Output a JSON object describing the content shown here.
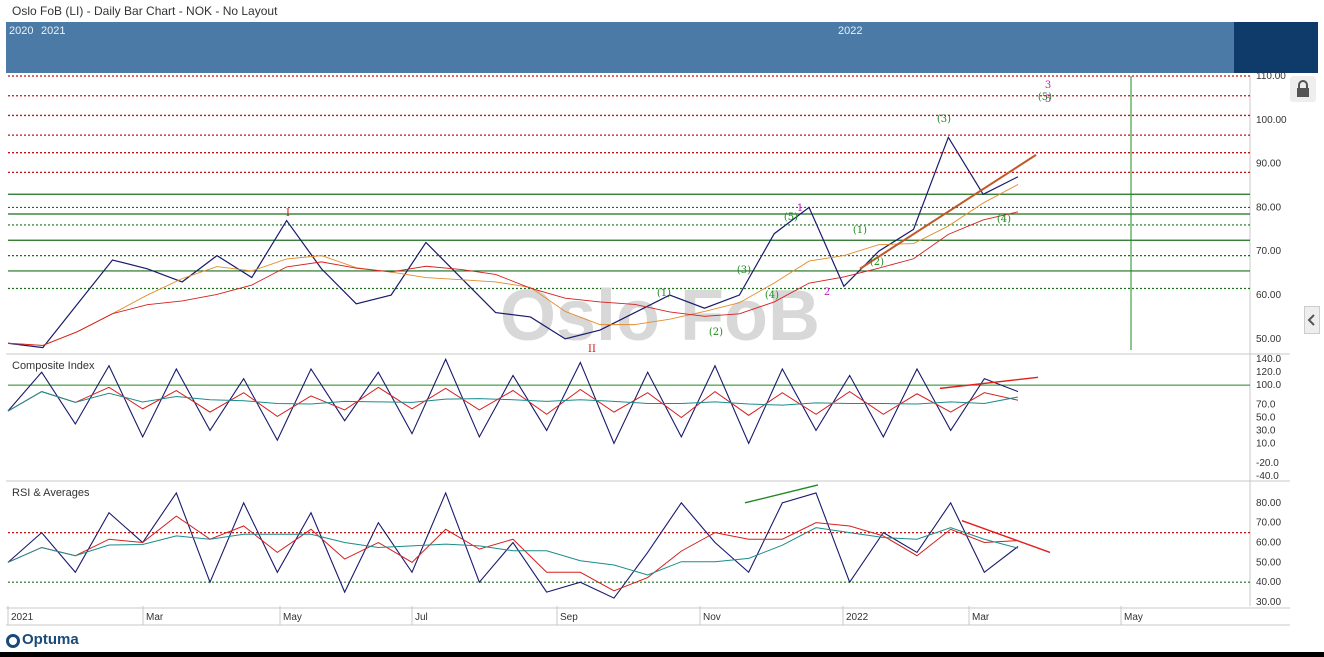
{
  "title": "Oslo FoB (LI) - Daily Bar Chart - NOK - No Layout",
  "watermark": "Oslo FoB",
  "navigator": {
    "years": [
      "2020",
      "2021",
      "2022"
    ]
  },
  "panels": {
    "composite_label": "Composite Index",
    "rsi_label": "RSI & Averages"
  },
  "brand": "Optuma",
  "colors": {
    "price": "#1a1a6e",
    "red_fast": "#d42020",
    "teal_slow": "#1a8c8c",
    "green": "#1e8a1e",
    "magenta": "#c020c0",
    "orange": "#e38b2b",
    "navigator": "#4b7aa6"
  },
  "chart_data": [
    {
      "type": "line",
      "name": "price",
      "x": [
        "2021-01-01",
        "2021-01-15",
        "2021-02-01",
        "2021-02-15",
        "2021-03-01",
        "2021-03-15",
        "2021-04-01",
        "2021-04-15",
        "2021-05-01",
        "2021-05-15",
        "2021-06-01",
        "2021-06-15",
        "2021-07-01",
        "2021-07-15",
        "2021-08-01",
        "2021-08-15",
        "2021-09-01",
        "2021-09-15",
        "2021-10-01",
        "2021-10-15",
        "2021-11-01",
        "2021-11-15",
        "2021-12-01",
        "2021-12-15",
        "2022-01-01",
        "2022-01-15",
        "2022-02-01",
        "2022-02-15",
        "2022-03-01",
        "2022-03-15"
      ],
      "series": [
        {
          "values": [
            49,
            48,
            58,
            68,
            66,
            63,
            69,
            64,
            77,
            66,
            58,
            60,
            72,
            64,
            56,
            55,
            50,
            52,
            56,
            60,
            57,
            60,
            74,
            80,
            62,
            70,
            75,
            96,
            83,
            87
          ]
        }
      ],
      "ylim": [
        47,
        110
      ],
      "y_ticks": [
        "50.00",
        "60.00",
        "70.00",
        "80.00",
        "90.00",
        "100.00",
        "110.00"
      ],
      "wave_labels": [
        "I",
        "II",
        "(1)",
        "(2)",
        "(3)",
        "(4)",
        "(5)",
        "(1)",
        "(2)",
        "(3)",
        "(4)",
        "(5)",
        "3",
        "5",
        "1",
        "2"
      ],
      "horizontal_levels_red": [
        110,
        105.5,
        101,
        96.5,
        92.5,
        88
      ],
      "horizontal_levels_green": [
        83,
        80,
        78.5,
        76,
        72.5,
        69,
        65.5,
        61.5
      ]
    },
    {
      "type": "line",
      "name": "composite",
      "ylim": [
        -45,
        145
      ],
      "y_ticks": [
        "140.0",
        "120.0",
        "100.0",
        "70.0",
        "50.0",
        "30.0",
        "10.0",
        "-20.0",
        "-40.0"
      ],
      "series": [
        {
          "values": [
            60,
            120,
            40,
            130,
            20,
            125,
            30,
            110,
            15,
            125,
            45,
            120,
            25,
            140,
            20,
            115,
            30,
            135,
            10,
            120,
            20,
            130,
            10,
            125,
            30,
            115,
            20,
            125,
            30,
            110,
            90
          ]
        }
      ],
      "level": 100
    },
    {
      "type": "line",
      "name": "rsi",
      "ylim": [
        28,
        90
      ],
      "y_ticks": [
        "80.00",
        "70.00",
        "60.00",
        "50.00",
        "40.00",
        "30.00"
      ],
      "series": [
        {
          "values": [
            50,
            65,
            45,
            75,
            60,
            85,
            40,
            80,
            45,
            75,
            35,
            70,
            45,
            85,
            40,
            60,
            35,
            40,
            32,
            55,
            80,
            60,
            45,
            80,
            85,
            40,
            65,
            55,
            80,
            45,
            58
          ]
        }
      ],
      "levels": [
        65,
        40
      ]
    }
  ],
  "x_axis": {
    "labels": [
      "2021",
      "Mar",
      "May",
      "Jul",
      "Sep",
      "Nov",
      "2022",
      "Mar",
      "May"
    ]
  }
}
